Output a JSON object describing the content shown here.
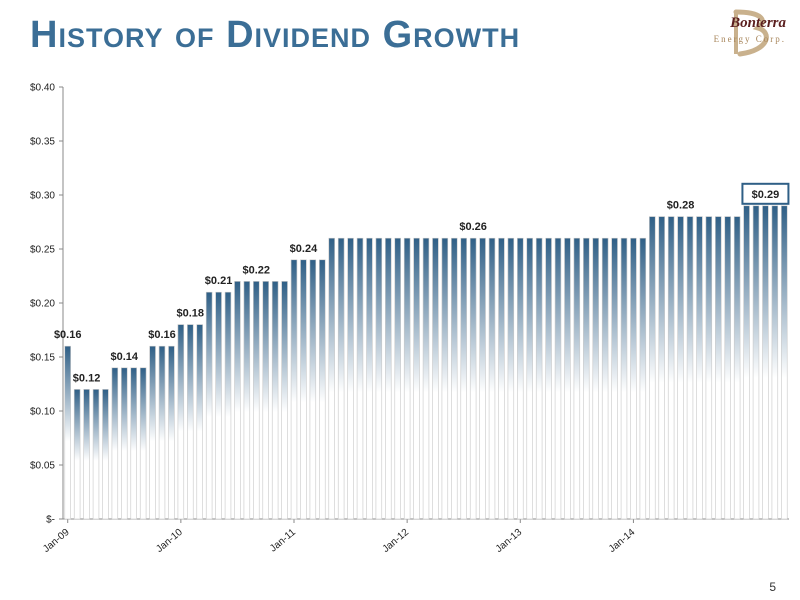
{
  "slide": {
    "title": "History of Dividend Growth",
    "page_number": "5"
  },
  "logo": {
    "name": "Bonterra",
    "sub": "Energy Corp."
  },
  "colors": {
    "title": "#3b6e96",
    "bar_top": "#2f5f86",
    "bar_bottom": "#ffffff",
    "highlight_box": "#2f5f86"
  },
  "chart_data": {
    "type": "bar",
    "title": "",
    "xlabel": "",
    "ylabel": "",
    "ylim": [
      0,
      0.4
    ],
    "y_ticks": [
      0,
      0.05,
      0.1,
      0.15,
      0.2,
      0.25,
      0.3,
      0.35,
      0.4
    ],
    "y_tick_labels": [
      "$-",
      "$0.05",
      "$0.10",
      "$0.15",
      "$0.20",
      "$0.25",
      "$0.30",
      "$0.35",
      "$0.40"
    ],
    "x_tick_labels": [
      "Jan-09",
      "Jan-10",
      "Jan-11",
      "Jan-12",
      "Jan-13",
      "Jan-14"
    ],
    "x_tick_every": 12,
    "grid": false,
    "values": [
      0.16,
      0.12,
      0.12,
      0.12,
      0.12,
      0.14,
      0.14,
      0.14,
      0.14,
      0.16,
      0.16,
      0.16,
      0.18,
      0.18,
      0.18,
      0.21,
      0.21,
      0.21,
      0.22,
      0.22,
      0.22,
      0.22,
      0.22,
      0.22,
      0.24,
      0.24,
      0.24,
      0.24,
      0.26,
      0.26,
      0.26,
      0.26,
      0.26,
      0.26,
      0.26,
      0.26,
      0.26,
      0.26,
      0.26,
      0.26,
      0.26,
      0.26,
      0.26,
      0.26,
      0.26,
      0.26,
      0.26,
      0.26,
      0.26,
      0.26,
      0.26,
      0.26,
      0.26,
      0.26,
      0.26,
      0.26,
      0.26,
      0.26,
      0.26,
      0.26,
      0.26,
      0.26,
      0.28,
      0.28,
      0.28,
      0.28,
      0.28,
      0.28,
      0.28,
      0.28,
      0.28,
      0.28,
      0.29,
      0.29,
      0.29,
      0.29,
      0.29
    ],
    "data_labels": [
      {
        "index": 0,
        "text": "$0.16"
      },
      {
        "index": 2,
        "text": "$0.12"
      },
      {
        "index": 6,
        "text": "$0.14"
      },
      {
        "index": 10,
        "text": "$0.16"
      },
      {
        "index": 13,
        "text": "$0.18"
      },
      {
        "index": 16,
        "text": "$0.21"
      },
      {
        "index": 20,
        "text": "$0.22"
      },
      {
        "index": 25,
        "text": "$0.24"
      },
      {
        "index": 43,
        "text": "$0.26"
      },
      {
        "index": 65,
        "text": "$0.28"
      },
      {
        "index": 74,
        "text": "$0.29",
        "boxed": true
      }
    ]
  }
}
